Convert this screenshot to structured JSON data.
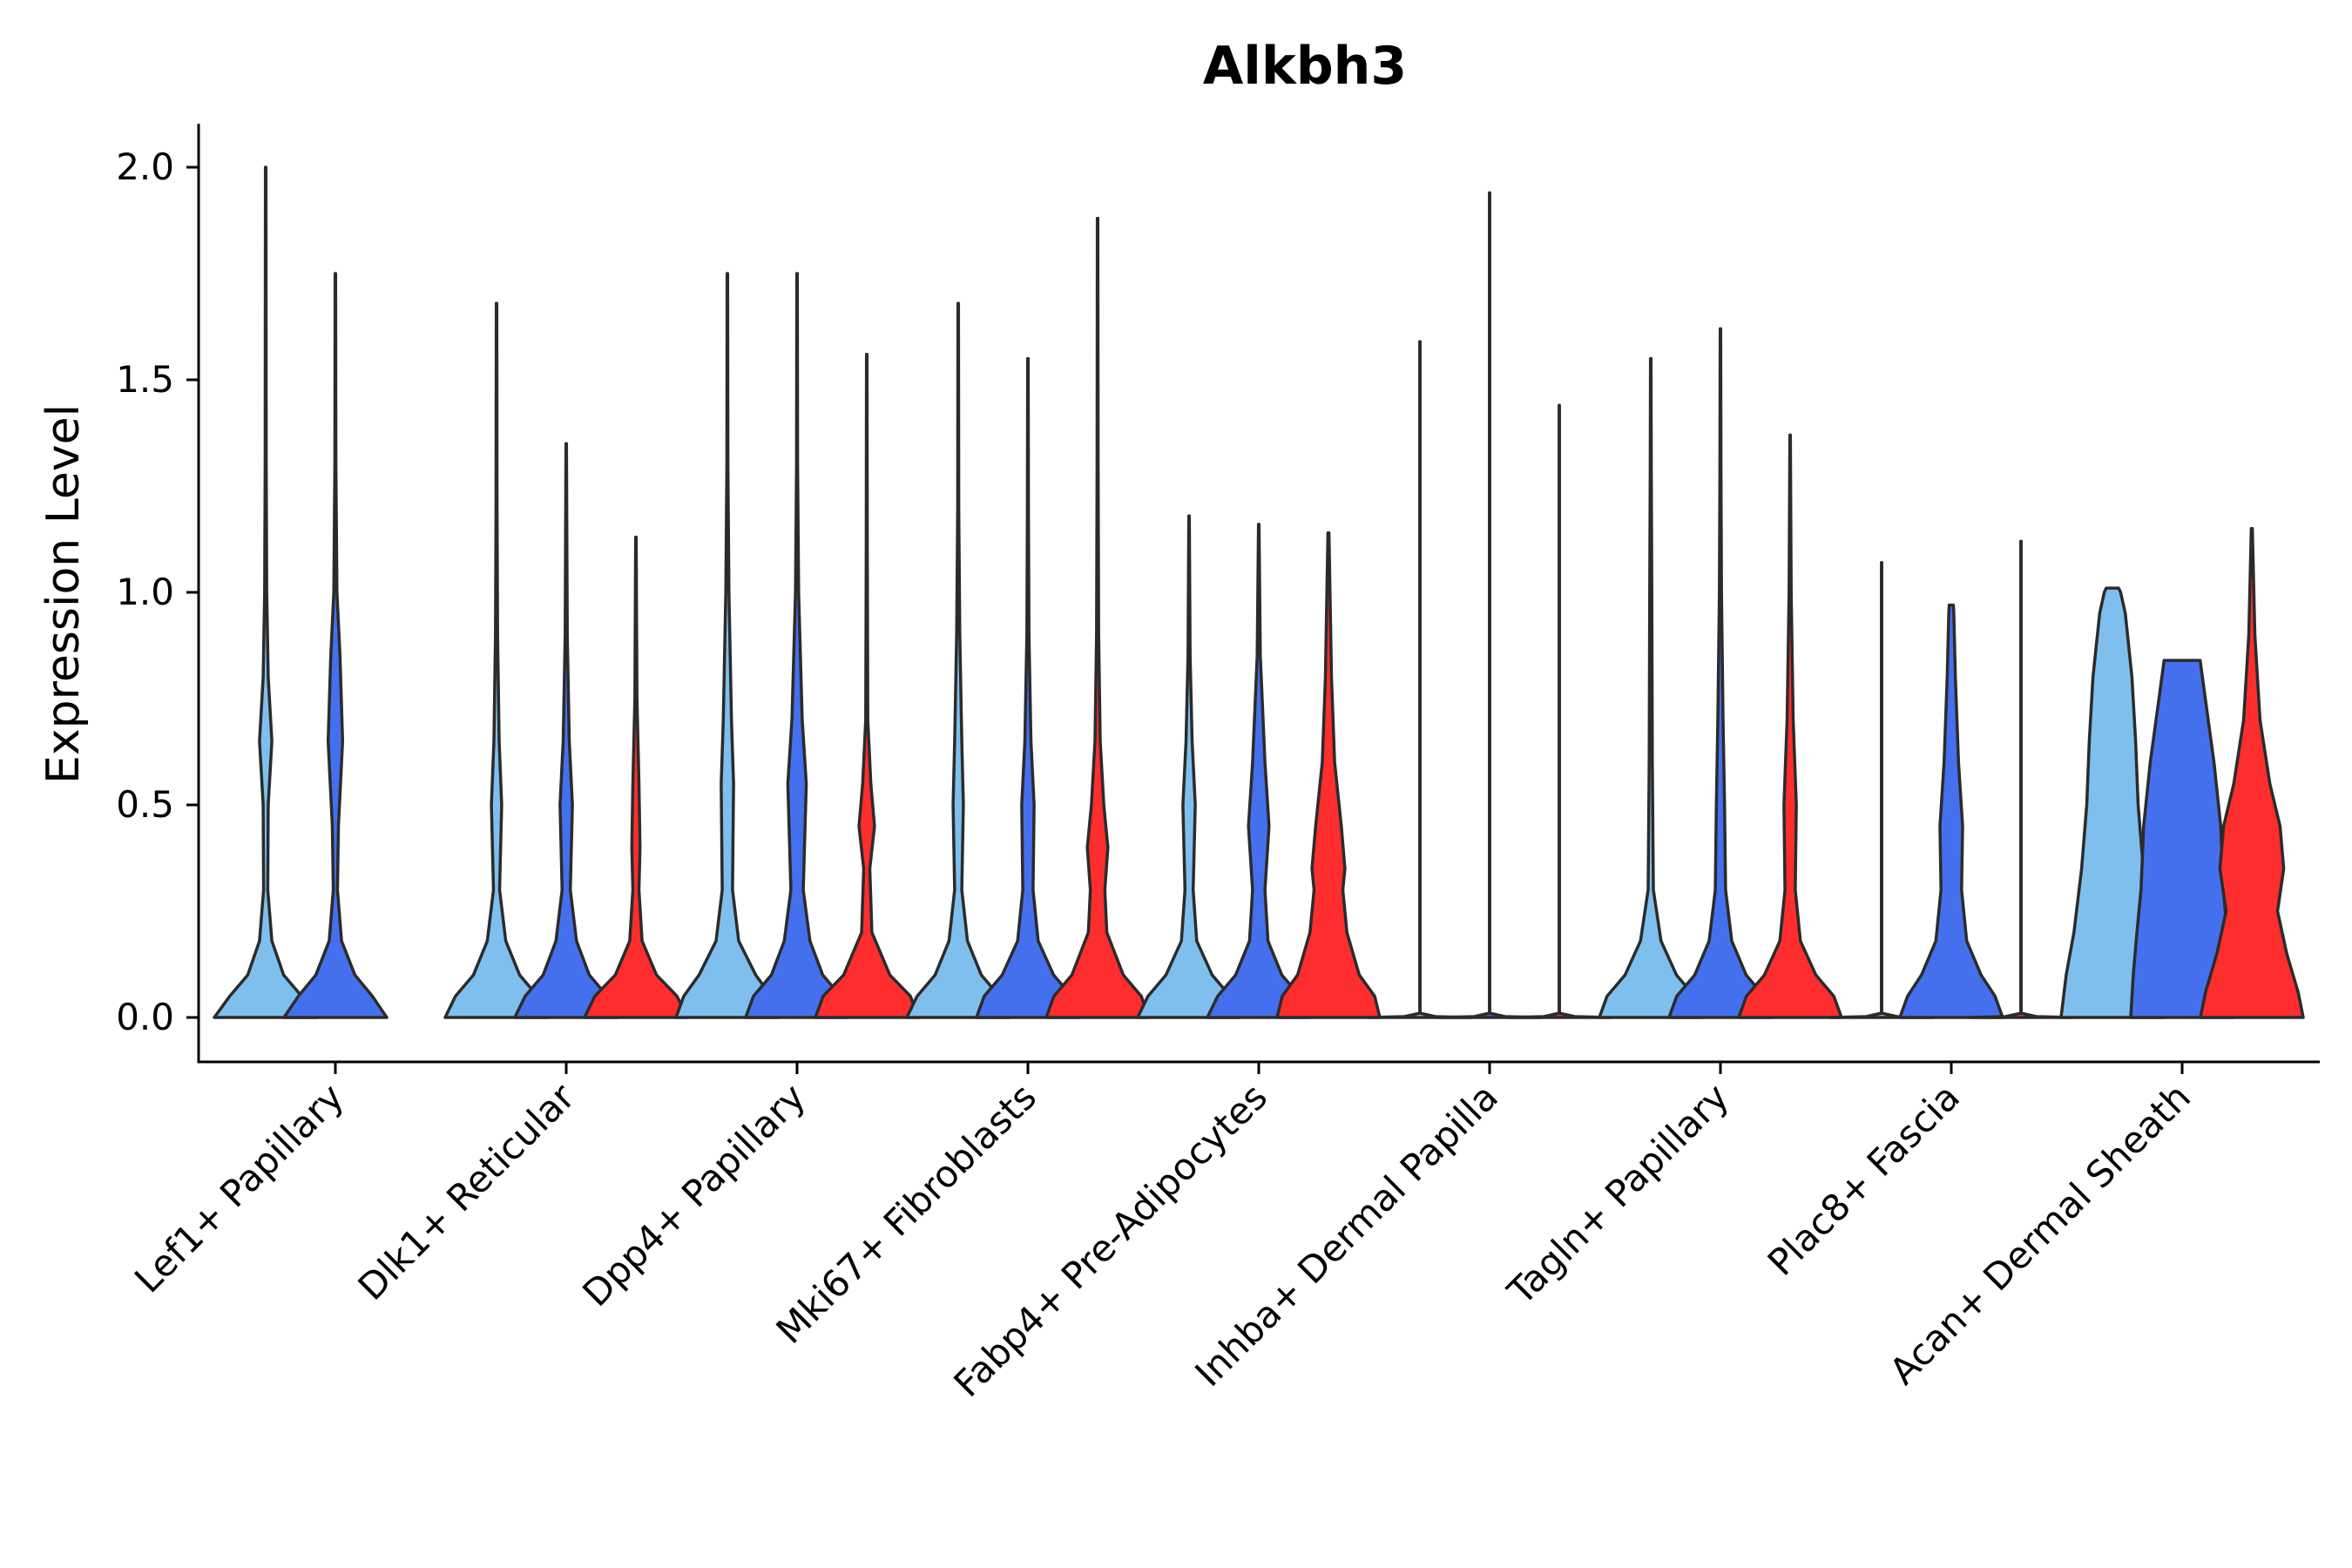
{
  "chart_data": {
    "type": "violin",
    "title": "Alkbh3",
    "xlabel": "",
    "ylabel": "Expression Level",
    "ylim": [
      -0.1,
      2.1
    ],
    "yticks": [
      "0.0",
      "0.5",
      "1.0",
      "1.5",
      "2.0"
    ],
    "categories": [
      "Lef1+ Papillary",
      "Dlk1+ Reticular",
      "Dpp4+ Papillary",
      "Mki67+ Fibroblasts",
      "Fabp4+ Pre-Adipocytes",
      "Inhba+ Dermal Papilla",
      "Tagln+ Papillary",
      "Plac8+ Fascia",
      "Acan+ Dermal Sheath"
    ],
    "group_colors": [
      "#7fbfee",
      "#4570ed",
      "#ff2e2e"
    ],
    "violins": [
      {
        "category": 0,
        "group": 0,
        "max": 2.0,
        "profile": [
          [
            0,
            1.0
          ],
          [
            0.05,
            0.7
          ],
          [
            0.1,
            0.35
          ],
          [
            0.18,
            0.12
          ],
          [
            0.3,
            0.04
          ],
          [
            0.5,
            0.05
          ],
          [
            0.65,
            0.12
          ],
          [
            0.8,
            0.05
          ],
          [
            1.0,
            0.02
          ],
          [
            1.3,
            0.01
          ],
          [
            2.0,
            0.005
          ]
        ]
      },
      {
        "category": 0,
        "group": 1,
        "max": 1.75,
        "profile": [
          [
            0,
            1.0
          ],
          [
            0.05,
            0.72
          ],
          [
            0.1,
            0.38
          ],
          [
            0.18,
            0.12
          ],
          [
            0.3,
            0.04
          ],
          [
            0.45,
            0.06
          ],
          [
            0.65,
            0.14
          ],
          [
            0.85,
            0.09
          ],
          [
            1.0,
            0.03
          ],
          [
            1.3,
            0.01
          ],
          [
            1.75,
            0.005
          ]
        ]
      },
      {
        "category": 1,
        "group": 0,
        "max": 1.68,
        "profile": [
          [
            0,
            1.0
          ],
          [
            0.05,
            0.8
          ],
          [
            0.1,
            0.45
          ],
          [
            0.18,
            0.18
          ],
          [
            0.3,
            0.06
          ],
          [
            0.5,
            0.1
          ],
          [
            0.65,
            0.05
          ],
          [
            0.9,
            0.02
          ],
          [
            1.2,
            0.01
          ],
          [
            1.68,
            0.005
          ]
        ]
      },
      {
        "category": 1,
        "group": 1,
        "max": 1.35,
        "profile": [
          [
            0,
            1.0
          ],
          [
            0.05,
            0.8
          ],
          [
            0.1,
            0.45
          ],
          [
            0.18,
            0.2
          ],
          [
            0.3,
            0.08
          ],
          [
            0.5,
            0.12
          ],
          [
            0.65,
            0.06
          ],
          [
            0.9,
            0.02
          ],
          [
            1.35,
            0.005
          ]
        ]
      },
      {
        "category": 1,
        "group": 2,
        "max": 1.13,
        "profile": [
          [
            0,
            1.0
          ],
          [
            0.05,
            0.8
          ],
          [
            0.1,
            0.4
          ],
          [
            0.18,
            0.12
          ],
          [
            0.3,
            0.06
          ],
          [
            0.4,
            0.08
          ],
          [
            0.55,
            0.06
          ],
          [
            0.75,
            0.02
          ],
          [
            1.13,
            0.005
          ]
        ]
      },
      {
        "category": 2,
        "group": 0,
        "max": 1.75,
        "profile": [
          [
            0,
            1.0
          ],
          [
            0.05,
            0.85
          ],
          [
            0.1,
            0.55
          ],
          [
            0.18,
            0.22
          ],
          [
            0.3,
            0.1
          ],
          [
            0.55,
            0.12
          ],
          [
            0.7,
            0.08
          ],
          [
            1.0,
            0.03
          ],
          [
            1.3,
            0.01
          ],
          [
            1.75,
            0.005
          ]
        ]
      },
      {
        "category": 2,
        "group": 1,
        "max": 1.75,
        "profile": [
          [
            0,
            1.0
          ],
          [
            0.05,
            0.85
          ],
          [
            0.1,
            0.5
          ],
          [
            0.18,
            0.25
          ],
          [
            0.3,
            0.12
          ],
          [
            0.55,
            0.18
          ],
          [
            0.7,
            0.1
          ],
          [
            1.0,
            0.03
          ],
          [
            1.3,
            0.01
          ],
          [
            1.75,
            0.005
          ]
        ]
      },
      {
        "category": 2,
        "group": 2,
        "max": 1.56,
        "profile": [
          [
            0,
            1.0
          ],
          [
            0.05,
            0.85
          ],
          [
            0.1,
            0.45
          ],
          [
            0.2,
            0.1
          ],
          [
            0.35,
            0.06
          ],
          [
            0.45,
            0.15
          ],
          [
            0.55,
            0.08
          ],
          [
            0.7,
            0.02
          ],
          [
            1.1,
            0.01
          ],
          [
            1.56,
            0.005
          ]
        ]
      },
      {
        "category": 3,
        "group": 0,
        "max": 1.68,
        "profile": [
          [
            0,
            1.0
          ],
          [
            0.05,
            0.8
          ],
          [
            0.1,
            0.45
          ],
          [
            0.18,
            0.18
          ],
          [
            0.3,
            0.07
          ],
          [
            0.5,
            0.1
          ],
          [
            0.65,
            0.07
          ],
          [
            0.9,
            0.03
          ],
          [
            1.2,
            0.01
          ],
          [
            1.68,
            0.005
          ]
        ]
      },
      {
        "category": 3,
        "group": 1,
        "max": 1.55,
        "profile": [
          [
            0,
            1.0
          ],
          [
            0.05,
            0.85
          ],
          [
            0.1,
            0.5
          ],
          [
            0.18,
            0.2
          ],
          [
            0.3,
            0.1
          ],
          [
            0.5,
            0.12
          ],
          [
            0.65,
            0.06
          ],
          [
            0.9,
            0.02
          ],
          [
            1.2,
            0.01
          ],
          [
            1.55,
            0.005
          ]
        ]
      },
      {
        "category": 3,
        "group": 2,
        "max": 1.88,
        "profile": [
          [
            0,
            1.0
          ],
          [
            0.05,
            0.85
          ],
          [
            0.1,
            0.5
          ],
          [
            0.2,
            0.18
          ],
          [
            0.3,
            0.14
          ],
          [
            0.4,
            0.2
          ],
          [
            0.5,
            0.12
          ],
          [
            0.65,
            0.05
          ],
          [
            0.9,
            0.02
          ],
          [
            1.3,
            0.01
          ],
          [
            1.88,
            0.005
          ]
        ]
      },
      {
        "category": 4,
        "group": 0,
        "max": 1.18,
        "profile": [
          [
            0,
            1.0
          ],
          [
            0.05,
            0.8
          ],
          [
            0.1,
            0.45
          ],
          [
            0.18,
            0.15
          ],
          [
            0.3,
            0.08
          ],
          [
            0.5,
            0.12
          ],
          [
            0.65,
            0.06
          ],
          [
            0.85,
            0.02
          ],
          [
            1.18,
            0.005
          ]
        ]
      },
      {
        "category": 4,
        "group": 1,
        "max": 1.16,
        "profile": [
          [
            0,
            1.0
          ],
          [
            0.05,
            0.8
          ],
          [
            0.1,
            0.45
          ],
          [
            0.18,
            0.18
          ],
          [
            0.3,
            0.12
          ],
          [
            0.45,
            0.2
          ],
          [
            0.6,
            0.12
          ],
          [
            0.85,
            0.03
          ],
          [
            1.16,
            0.005
          ]
        ]
      },
      {
        "category": 4,
        "group": 2,
        "max": 1.14,
        "profile": [
          [
            0,
            1.0
          ],
          [
            0.05,
            0.9
          ],
          [
            0.1,
            0.6
          ],
          [
            0.2,
            0.36
          ],
          [
            0.3,
            0.28
          ],
          [
            0.35,
            0.32
          ],
          [
            0.45,
            0.25
          ],
          [
            0.6,
            0.12
          ],
          [
            0.8,
            0.06
          ],
          [
            1.0,
            0.03
          ],
          [
            1.14,
            0.01
          ]
        ]
      },
      {
        "category": 5,
        "group": 0,
        "max": 1.59,
        "profile": [
          [
            0,
            1.0
          ],
          [
            0.002,
            0.3
          ],
          [
            0.01,
            0.004
          ],
          [
            1.59,
            0.004
          ]
        ]
      },
      {
        "category": 5,
        "group": 1,
        "max": 1.94,
        "profile": [
          [
            0,
            1.0
          ],
          [
            0.002,
            0.3
          ],
          [
            0.01,
            0.004
          ],
          [
            1.94,
            0.004
          ]
        ]
      },
      {
        "category": 5,
        "group": 2,
        "max": 1.44,
        "profile": [
          [
            0,
            1.0
          ],
          [
            0.002,
            0.3
          ],
          [
            0.01,
            0.004
          ],
          [
            1.44,
            0.004
          ]
        ]
      },
      {
        "category": 6,
        "group": 0,
        "max": 1.55,
        "profile": [
          [
            0,
            1.0
          ],
          [
            0.05,
            0.85
          ],
          [
            0.1,
            0.5
          ],
          [
            0.18,
            0.2
          ],
          [
            0.3,
            0.05
          ],
          [
            0.6,
            0.03
          ],
          [
            1.0,
            0.02
          ],
          [
            1.3,
            0.01
          ],
          [
            1.55,
            0.005
          ]
        ]
      },
      {
        "category": 6,
        "group": 1,
        "max": 1.62,
        "profile": [
          [
            0,
            1.0
          ],
          [
            0.05,
            0.85
          ],
          [
            0.1,
            0.5
          ],
          [
            0.18,
            0.22
          ],
          [
            0.3,
            0.1
          ],
          [
            0.5,
            0.08
          ],
          [
            0.7,
            0.05
          ],
          [
            1.0,
            0.02
          ],
          [
            1.3,
            0.01
          ],
          [
            1.62,
            0.005
          ]
        ]
      },
      {
        "category": 6,
        "group": 2,
        "max": 1.37,
        "profile": [
          [
            0,
            1.0
          ],
          [
            0.05,
            0.85
          ],
          [
            0.1,
            0.5
          ],
          [
            0.18,
            0.2
          ],
          [
            0.3,
            0.1
          ],
          [
            0.5,
            0.12
          ],
          [
            0.7,
            0.06
          ],
          [
            1.0,
            0.02
          ],
          [
            1.37,
            0.005
          ]
        ]
      },
      {
        "category": 7,
        "group": 0,
        "max": 1.07,
        "profile": [
          [
            0,
            1.0
          ],
          [
            0.002,
            0.3
          ],
          [
            0.01,
            0.004
          ],
          [
            1.07,
            0.004
          ]
        ]
      },
      {
        "category": 7,
        "group": 1,
        "max": 0.97,
        "profile": [
          [
            0,
            1.0
          ],
          [
            0.05,
            0.85
          ],
          [
            0.1,
            0.58
          ],
          [
            0.18,
            0.3
          ],
          [
            0.3,
            0.2
          ],
          [
            0.45,
            0.22
          ],
          [
            0.6,
            0.14
          ],
          [
            0.8,
            0.08
          ],
          [
            0.95,
            0.05
          ],
          [
            0.97,
            0.04
          ]
        ]
      },
      {
        "category": 7,
        "group": 2,
        "max": 1.12,
        "profile": [
          [
            0,
            1.0
          ],
          [
            0.002,
            0.3
          ],
          [
            0.01,
            0.004
          ],
          [
            1.12,
            0.004
          ]
        ]
      },
      {
        "category": 8,
        "group": 0,
        "max": 1.01,
        "profile": [
          [
            0,
            1.0
          ],
          [
            0.1,
            0.9
          ],
          [
            0.2,
            0.75
          ],
          [
            0.35,
            0.6
          ],
          [
            0.5,
            0.5
          ],
          [
            0.65,
            0.45
          ],
          [
            0.8,
            0.38
          ],
          [
            0.95,
            0.25
          ],
          [
            1.0,
            0.16
          ],
          [
            1.01,
            0.12
          ]
        ]
      },
      {
        "category": 8,
        "group": 1,
        "max": 0.84,
        "profile": [
          [
            0,
            1.0
          ],
          [
            0.1,
            0.95
          ],
          [
            0.2,
            0.88
          ],
          [
            0.3,
            0.8
          ],
          [
            0.45,
            0.75
          ],
          [
            0.6,
            0.62
          ],
          [
            0.75,
            0.45
          ],
          [
            0.84,
            0.35
          ]
        ]
      },
      {
        "category": 8,
        "group": 2,
        "max": 1.15,
        "profile": [
          [
            0,
            1.0
          ],
          [
            0.06,
            0.9
          ],
          [
            0.15,
            0.68
          ],
          [
            0.25,
            0.5
          ],
          [
            0.35,
            0.62
          ],
          [
            0.45,
            0.55
          ],
          [
            0.55,
            0.35
          ],
          [
            0.7,
            0.16
          ],
          [
            0.9,
            0.06
          ],
          [
            1.15,
            0.01
          ]
        ]
      }
    ]
  }
}
